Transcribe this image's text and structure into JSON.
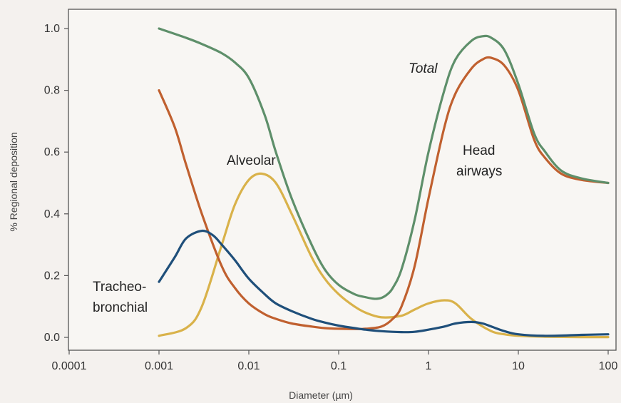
{
  "chart_data": {
    "type": "line",
    "x_scale": "log",
    "xlabel": "Diameter (µm)",
    "ylabel": "% Regional deposition",
    "xlim": [
      0.0001,
      100
    ],
    "ylim": [
      0,
      1.05
    ],
    "x_ticks": [
      "0.0001",
      "0.001",
      "0.01",
      "0.1",
      "1",
      "10",
      "100"
    ],
    "y_ticks": [
      "0.0",
      "0.2",
      "0.4",
      "0.6",
      "0.8",
      "1.0"
    ],
    "grid": false,
    "series": [
      {
        "name": "Total",
        "color": "#5e8f6a",
        "x": [
          0.001,
          0.002,
          0.003,
          0.005,
          0.007,
          0.01,
          0.015,
          0.02,
          0.03,
          0.05,
          0.07,
          0.1,
          0.15,
          0.2,
          0.25,
          0.3,
          0.35,
          0.4,
          0.5,
          0.7,
          1,
          1.5,
          2,
          3,
          4,
          5,
          7,
          10,
          15,
          20,
          30,
          50,
          100
        ],
        "y": [
          1.0,
          0.97,
          0.95,
          0.92,
          0.89,
          0.84,
          0.72,
          0.6,
          0.45,
          0.3,
          0.22,
          0.17,
          0.14,
          0.13,
          0.125,
          0.128,
          0.14,
          0.16,
          0.22,
          0.38,
          0.6,
          0.8,
          0.9,
          0.96,
          0.975,
          0.97,
          0.93,
          0.82,
          0.66,
          0.6,
          0.54,
          0.515,
          0.5
        ]
      },
      {
        "name": "Head airways",
        "color": "#c0602f",
        "x": [
          0.001,
          0.0015,
          0.002,
          0.003,
          0.005,
          0.007,
          0.01,
          0.015,
          0.02,
          0.03,
          0.05,
          0.07,
          0.1,
          0.15,
          0.2,
          0.3,
          0.4,
          0.5,
          0.7,
          1,
          1.5,
          2,
          3,
          4,
          5,
          7,
          10,
          15,
          20,
          30,
          50,
          100
        ],
        "y": [
          0.8,
          0.68,
          0.56,
          0.4,
          0.23,
          0.16,
          0.11,
          0.075,
          0.06,
          0.045,
          0.035,
          0.03,
          0.028,
          0.027,
          0.028,
          0.035,
          0.06,
          0.1,
          0.23,
          0.45,
          0.68,
          0.79,
          0.87,
          0.9,
          0.905,
          0.88,
          0.8,
          0.64,
          0.58,
          0.53,
          0.51,
          0.5
        ]
      },
      {
        "name": "Alveolar",
        "color": "#d9b24a",
        "x": [
          0.001,
          0.002,
          0.003,
          0.005,
          0.007,
          0.01,
          0.014,
          0.02,
          0.03,
          0.05,
          0.07,
          0.1,
          0.15,
          0.2,
          0.3,
          0.5,
          0.7,
          1,
          1.5,
          2,
          3,
          5,
          7,
          10,
          20,
          50,
          100
        ],
        "y": [
          0.005,
          0.03,
          0.1,
          0.3,
          0.43,
          0.51,
          0.53,
          0.5,
          0.4,
          0.26,
          0.19,
          0.14,
          0.1,
          0.08,
          0.065,
          0.07,
          0.09,
          0.11,
          0.12,
          0.11,
          0.06,
          0.02,
          0.01,
          0.005,
          0.002,
          0.001,
          0.001
        ]
      },
      {
        "name": "Tracheo- bronchial",
        "color": "#1f4f7a",
        "x": [
          0.001,
          0.0015,
          0.002,
          0.003,
          0.004,
          0.005,
          0.007,
          0.01,
          0.015,
          0.02,
          0.03,
          0.05,
          0.07,
          0.1,
          0.15,
          0.2,
          0.3,
          0.5,
          0.7,
          1,
          1.5,
          2,
          3,
          4,
          5,
          7,
          10,
          20,
          50,
          100
        ],
        "y": [
          0.18,
          0.26,
          0.32,
          0.345,
          0.33,
          0.3,
          0.25,
          0.19,
          0.14,
          0.11,
          0.085,
          0.06,
          0.048,
          0.038,
          0.03,
          0.025,
          0.02,
          0.017,
          0.018,
          0.025,
          0.035,
          0.045,
          0.05,
          0.045,
          0.035,
          0.02,
          0.01,
          0.005,
          0.008,
          0.01
        ]
      }
    ],
    "annotations": [
      {
        "text": "Total",
        "series": "Total"
      },
      {
        "text": "Head",
        "series": "Head airways"
      },
      {
        "text": "airways",
        "series": "Head airways"
      },
      {
        "text": "Alveolar",
        "series": "Alveolar"
      },
      {
        "text": "Tracheo-",
        "series": "Tracheo- bronchial"
      },
      {
        "text": "bronchial",
        "series": "Tracheo- bronchial"
      }
    ]
  }
}
